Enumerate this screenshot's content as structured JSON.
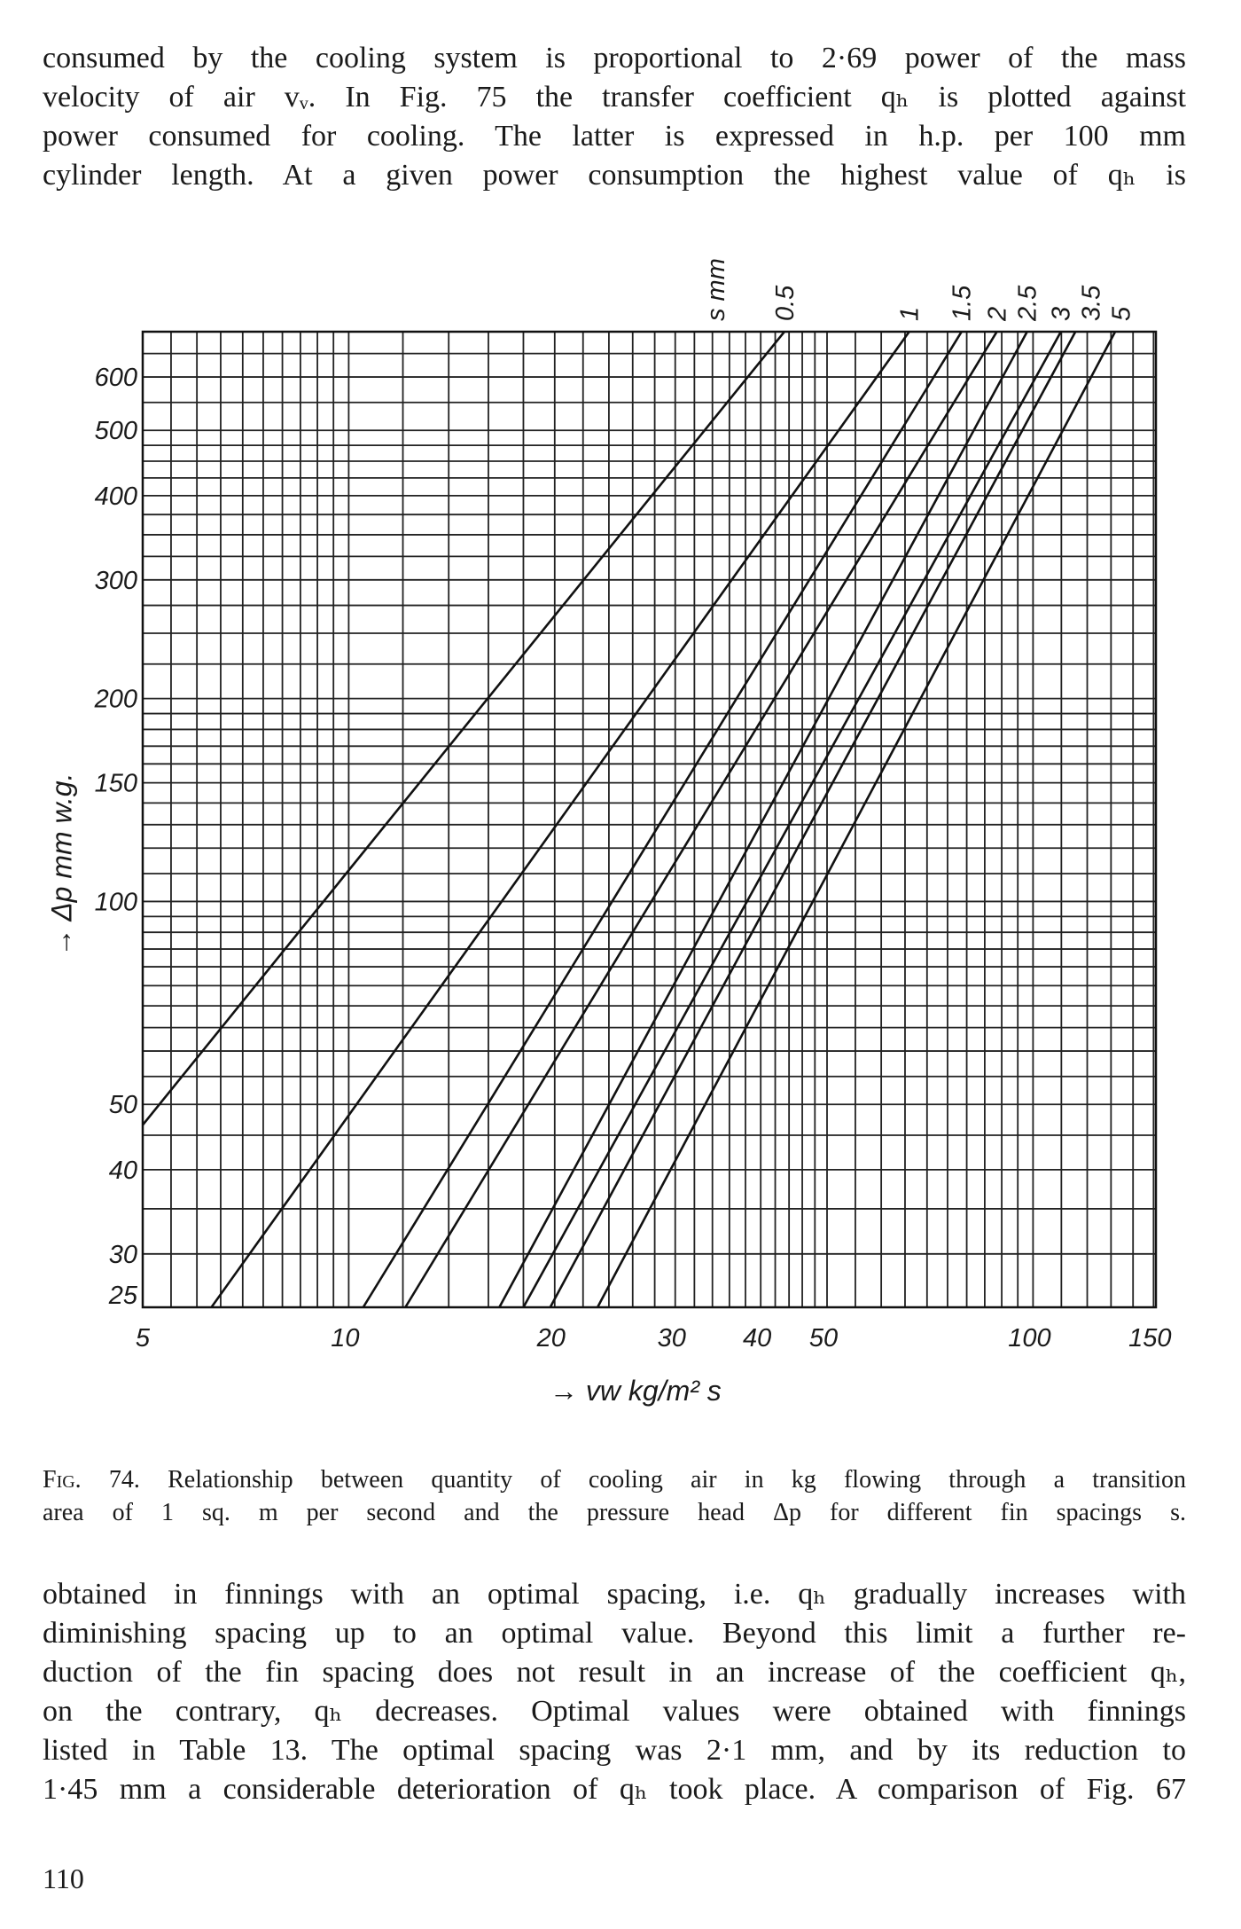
{
  "top_paragraph": [
    "consumed by the cooling system is proportional to 2·69 power of the mass",
    "velocity of air vᵥ. In Fig. 75 the transfer coefficient qₕ is plotted against",
    "power consumed for cooling. The latter is expressed in h.p. per 100 mm",
    "cylinder length. At a given power consumption the highest value of qₕ is"
  ],
  "caption": {
    "fig_label": "Fig. 74.",
    "lines": [
      "Relationship between quantity of cooling air in kg flowing through a transition",
      "area of 1 sq. m per second and the pressure head Δp for different fin spacings s."
    ]
  },
  "bottom_paragraph": [
    "obtained in finnings with an optimal spacing, i.e. qₕ gradually increases with",
    "diminishing spacing up to an optimal value. Beyond this limit a further re-",
    "duction of the fin spacing does not result in an increase of the coefficient qₕ,",
    "on the contrary, qₕ decreases. Optimal values were obtained with finnings",
    "listed in Table 13. The optimal spacing was 2·1 mm, and by its reduction to",
    "1·45 mm a considerable deterioration of qₕ took place. A comparison of Fig. 67"
  ],
  "page_number": "110",
  "chart_data": {
    "type": "line",
    "title": "",
    "xlabel": "→ vw kg/m² s",
    "ylabel": "→ Δp mm w.g.",
    "xscale": "log",
    "yscale": "log",
    "xlim": [
      5,
      150
    ],
    "ylim": [
      25,
      700
    ],
    "grid": true,
    "x_ticks": [
      {
        "value": 5,
        "label": "5"
      },
      {
        "value": 10,
        "label": "10"
      },
      {
        "value": 20,
        "label": "20"
      },
      {
        "value": 30,
        "label": "30"
      },
      {
        "value": 40,
        "label": "40"
      },
      {
        "value": 50,
        "label": "50"
      },
      {
        "value": 100,
        "label": "100"
      },
      {
        "value": 150,
        "label": "150"
      }
    ],
    "y_ticks": [
      {
        "value": 25,
        "label": "25"
      },
      {
        "value": 30,
        "label": "30"
      },
      {
        "value": 40,
        "label": "40"
      },
      {
        "value": 50,
        "label": "50"
      },
      {
        "value": 100,
        "label": "100"
      },
      {
        "value": 150,
        "label": "150"
      },
      {
        "value": 200,
        "label": "200"
      },
      {
        "value": 300,
        "label": "300"
      },
      {
        "value": 400,
        "label": "400"
      },
      {
        "value": 500,
        "label": "500"
      },
      {
        "value": 600,
        "label": "600"
      }
    ],
    "legend_title": "s mm",
    "series": [
      {
        "name": "0.5",
        "points": [
          [
            5,
            46.6
          ],
          [
            43.3,
            700
          ]
        ]
      },
      {
        "name": "1",
        "points": [
          [
            6.3,
            25
          ],
          [
            65.9,
            700
          ]
        ]
      },
      {
        "name": "1.5",
        "points": [
          [
            10.5,
            25
          ],
          [
            78.6,
            700
          ]
        ]
      },
      {
        "name": "2",
        "points": [
          [
            12.1,
            25
          ],
          [
            88.5,
            700
          ]
        ]
      },
      {
        "name": "2.5",
        "points": [
          [
            16.6,
            25
          ],
          [
            98.0,
            700
          ]
        ]
      },
      {
        "name": "3",
        "points": [
          [
            18.0,
            25
          ],
          [
            109.8,
            700
          ]
        ]
      },
      {
        "name": "3.5",
        "points": [
          [
            19.7,
            25
          ],
          [
            115.3,
            700
          ]
        ]
      },
      {
        "name": "5",
        "points": [
          [
            23.1,
            25
          ],
          [
            131.8,
            700
          ]
        ]
      }
    ]
  }
}
